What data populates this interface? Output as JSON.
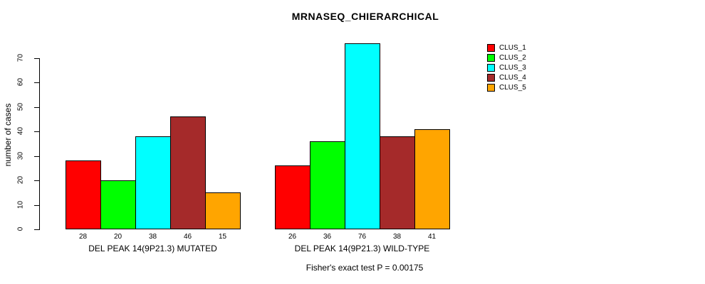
{
  "title": "MRNASEQ_CHIERARCHICAL",
  "footer_annotation": "Fisher's exact test P = 0.00175",
  "chart_data": {
    "type": "bar",
    "title": "MRNASEQ_CHIERARCHICAL",
    "xlabel": "",
    "ylabel": "number of cases",
    "ylim": [
      0,
      70
    ],
    "yticks": [
      0,
      10,
      20,
      30,
      40,
      50,
      60,
      70
    ],
    "grid": false,
    "legend_position": "top-right",
    "bar_labels_shown": true,
    "categories": [
      "DEL PEAK 14(9P21.3) MUTATED",
      "DEL PEAK 14(9P21.3) WILD-TYPE"
    ],
    "series": [
      {
        "name": "CLUS_1",
        "color": "#FF0000",
        "values": [
          28,
          26
        ]
      },
      {
        "name": "CLUS_2",
        "color": "#00FF00",
        "values": [
          20,
          36
        ]
      },
      {
        "name": "CLUS_3",
        "color": "#00FFFF",
        "values": [
          38,
          76
        ]
      },
      {
        "name": "CLUS_4",
        "color": "#A52A2A",
        "values": [
          46,
          38
        ]
      },
      {
        "name": "CLUS_5",
        "color": "#FFA500",
        "values": [
          15,
          41
        ]
      }
    ],
    "annotation": "Fisher's exact test P = 0.00175"
  }
}
